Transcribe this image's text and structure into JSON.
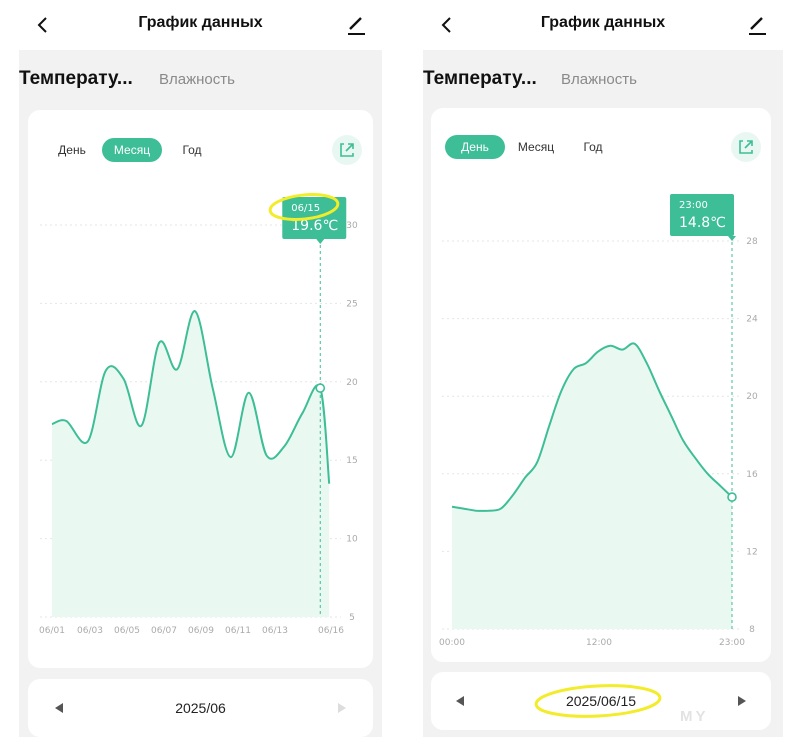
{
  "header": {
    "title": "График данных",
    "back_icon": "chevron-left-icon",
    "edit_icon": "pencil-icon"
  },
  "tabs": {
    "temperature": "Температу...",
    "humidity": "Влажность"
  },
  "periods": {
    "day": "День",
    "month": "Месяц",
    "year": "Год"
  },
  "colors": {
    "accent": "#3dbe96",
    "fill": "#eaf8f2",
    "highlight": "#f2ec2a"
  },
  "left": {
    "selected_period": "month",
    "pager_date": "2025/06",
    "chart_data": {
      "type": "area",
      "y_ticks": [
        "5",
        "10",
        "15",
        "20",
        "25",
        "30"
      ],
      "x_ticks": [
        "06/01",
        "06/03",
        "06/05",
        "06/07",
        "06/09",
        "06/11",
        "06/13",
        "06/16"
      ],
      "ylim": [
        5,
        30
      ],
      "xlim": [
        1,
        16.6
      ],
      "x": [
        1,
        1.8,
        3,
        4,
        5,
        6,
        7,
        8,
        9,
        10,
        11,
        12,
        13,
        14,
        15,
        16
      ],
      "values": [
        17.3,
        17.5,
        16.2,
        20.7,
        20.2,
        17.2,
        22.5,
        20.8,
        24.5,
        19.5,
        15.2,
        19.3,
        15.3,
        15.9,
        18.0,
        19.6
      ],
      "tail": {
        "x": 16.5,
        "value": 13.5
      },
      "tooltip": {
        "date": "06/15",
        "value": "19.6℃",
        "x": 16,
        "y": 19.6
      }
    }
  },
  "right": {
    "selected_period": "day",
    "pager_date": "2025/06/15",
    "chart_data": {
      "type": "area",
      "y_ticks": [
        "8",
        "12",
        "16",
        "20",
        "24",
        "28"
      ],
      "x_ticks": [
        "00:00",
        "12:00",
        "23:00"
      ],
      "ylim": [
        8,
        28
      ],
      "xlim": [
        0,
        23
      ],
      "x": [
        0,
        1,
        2,
        3,
        4,
        5,
        6,
        7,
        8,
        9,
        10,
        11,
        12,
        13,
        14,
        15,
        16,
        17,
        18,
        19,
        20,
        21,
        22,
        23
      ],
      "values": [
        14.3,
        14.2,
        14.1,
        14.1,
        14.2,
        14.9,
        15.8,
        16.6,
        18.5,
        20.3,
        21.4,
        21.7,
        22.3,
        22.6,
        22.4,
        22.7,
        21.7,
        20.3,
        19.0,
        17.7,
        16.8,
        16.0,
        15.4,
        14.8
      ],
      "tooltip": {
        "date": "23:00",
        "value": "14.8℃",
        "x": 23,
        "y": 14.8
      }
    }
  },
  "watermark": "MY"
}
